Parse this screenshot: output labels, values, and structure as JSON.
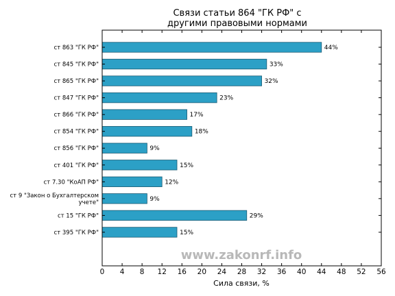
{
  "chart_data": {
    "type": "bar",
    "orientation": "horizontal",
    "title_lines": [
      "Связи статьи 864 \"ГК РФ\" с",
      "другими правовыми нормами"
    ],
    "categories": [
      [
        "ст 863 \"ГК РФ\""
      ],
      [
        "ст 845 \"ГК РФ\""
      ],
      [
        "ст 865 \"ГК РФ\""
      ],
      [
        "ст 847 \"ГК РФ\""
      ],
      [
        "ст 866 \"ГК РФ\""
      ],
      [
        "ст 854 \"ГК РФ\""
      ],
      [
        "ст 856 \"ГК РФ\""
      ],
      [
        "ст 401 \"ГК РФ\""
      ],
      [
        "ст 7.30 \"КоАП РФ\""
      ],
      [
        "ст 9 \"Закон о Бухгалтерском",
        "учете\""
      ],
      [
        "ст 15 \"ГК РФ\""
      ],
      [
        "ст 395 \"ГК РФ\""
      ]
    ],
    "values": [
      44,
      33,
      32,
      23,
      17,
      18,
      9,
      15,
      12,
      9,
      29,
      15
    ],
    "value_labels": [
      "44%",
      "33%",
      "32%",
      "23%",
      "17%",
      "18%",
      "9%",
      "15%",
      "12%",
      "9%",
      "29%",
      "15%"
    ],
    "xlabel": "Сила связи, %",
    "xlim": [
      0,
      56
    ],
    "xticks": [
      0,
      4,
      8,
      12,
      16,
      20,
      24,
      28,
      32,
      36,
      40,
      44,
      48,
      52,
      56
    ],
    "grid": false,
    "bar_color": "#2ca0c6",
    "bar_edge_color": "#1a5a73",
    "watermark": "www.zakonrf.info"
  }
}
